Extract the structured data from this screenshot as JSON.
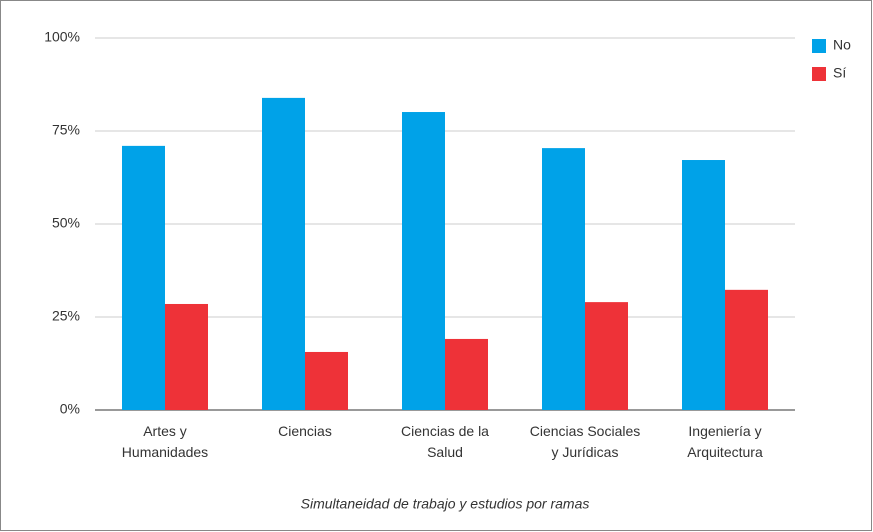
{
  "chart_data": {
    "type": "bar",
    "x_label": "Simultaneidad de trabajo y estudios por ramas",
    "categories": [
      "Artes y Humanidades",
      "Ciencias",
      "Ciencias de la Salud",
      "Ciencias Sociales y Jurídicas",
      "Ingeniería y Arquitectura"
    ],
    "series": [
      {
        "name": "No",
        "color": "#00a2e8",
        "values": [
          71.0,
          83.9,
          80.1,
          70.4,
          67.2
        ]
      },
      {
        "name": "Sí",
        "color": "#ee3238",
        "values": [
          28.5,
          15.6,
          19.1,
          29.0,
          32.3
        ]
      }
    ],
    "ylim": [
      0,
      100
    ],
    "yticks": [
      {
        "value": 0,
        "label": "0%"
      },
      {
        "value": 25,
        "label": "25%"
      },
      {
        "value": 50,
        "label": "50%"
      },
      {
        "value": 75,
        "label": "75%"
      },
      {
        "value": 100,
        "label": "100%"
      }
    ],
    "grid": true,
    "legend": "right"
  }
}
